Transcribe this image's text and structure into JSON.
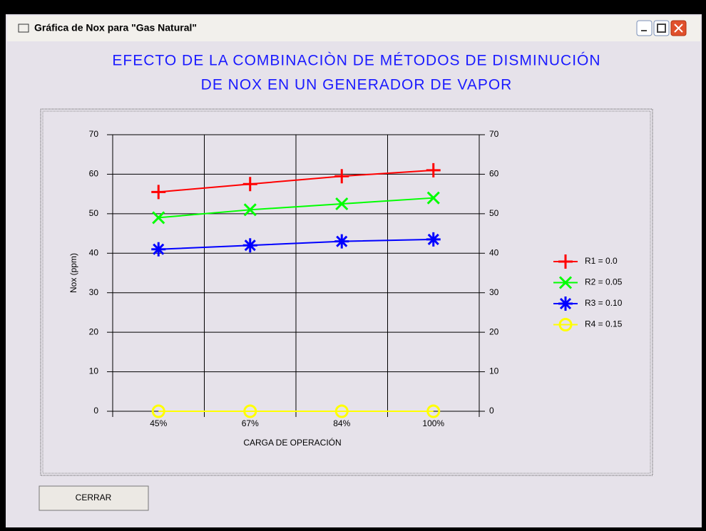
{
  "window": {
    "title": "Gráfica de Nox para \"Gas Natural\""
  },
  "button": {
    "label": "CERRAR"
  },
  "chart_data": {
    "type": "line",
    "title": [
      "EFECTO DE LA COMBINACIÒN DE MÉTODOS DE DISMINUCIÓN",
      "DE NOX EN UN GENERADOR DE VAPOR"
    ],
    "x_label": "CARGA DE OPERACIÓN",
    "y_label": "Nox (ppm)",
    "categories": [
      "45%",
      "67%",
      "84%",
      "100%"
    ],
    "series": [
      {
        "name": "R1 = 0.0",
        "color": "#ff0000",
        "marker": "plus",
        "values": [
          55.5,
          57.5,
          59.5,
          61
        ]
      },
      {
        "name": "R2 = 0.05",
        "color": "#00ff00",
        "marker": "x",
        "values": [
          49,
          51,
          52.5,
          54
        ]
      },
      {
        "name": "R3 = 0.10",
        "color": "#0000ff",
        "marker": "star",
        "values": [
          41,
          42,
          43,
          43.5
        ]
      },
      {
        "name": "R4 = 0.15",
        "color": "#ffff00",
        "marker": "circle",
        "values": [
          0,
          0,
          0,
          0
        ]
      }
    ],
    "ylim": [
      0,
      70
    ],
    "yticks": [
      0,
      10,
      20,
      30,
      40,
      50,
      60,
      70
    ],
    "y2lim": [
      0,
      70
    ],
    "y2ticks": [
      0,
      10,
      20,
      30,
      40,
      50,
      60,
      70
    ],
    "grid": true,
    "legend": "right"
  }
}
